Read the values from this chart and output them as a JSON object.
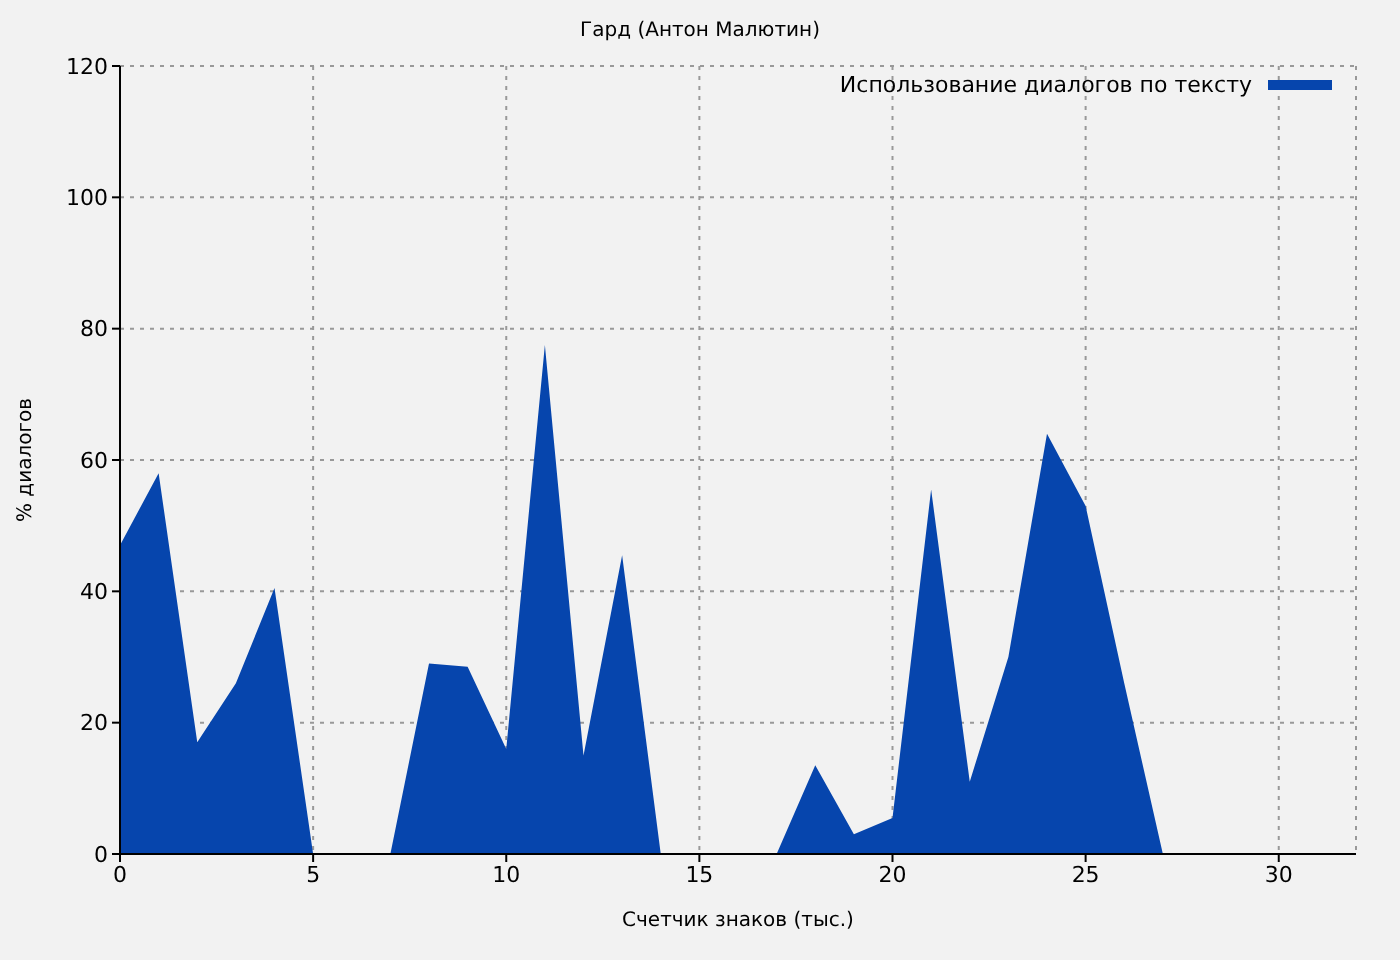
{
  "chart_data": {
    "type": "area",
    "title": "Гард (Антон Малютин)",
    "xlabel": "Счетчик знаков (тыс.)",
    "ylabel": "% диалогов",
    "x": [
      0,
      1,
      2,
      3,
      4,
      5,
      6,
      7,
      8,
      9,
      10,
      11,
      12,
      13,
      14,
      15,
      16,
      17,
      18,
      19,
      20,
      21,
      22,
      23,
      24,
      25,
      26,
      27
    ],
    "series": [
      {
        "name": "Использование диалогов по тексту",
        "color": "#0645ad",
        "values": [
          47,
          58,
          17,
          26,
          40.5,
          0,
          0,
          0,
          29,
          28.5,
          16,
          77.5,
          15,
          45.5,
          0,
          0,
          0,
          0,
          13.5,
          3,
          5.5,
          55.5,
          11,
          30,
          64,
          53,
          26,
          0
        ]
      }
    ],
    "xlim": [
      0,
      32
    ],
    "xticks": [
      0,
      5,
      10,
      15,
      20,
      25,
      30
    ],
    "ylim": [
      0,
      120
    ],
    "yticks": [
      0,
      20,
      40,
      60,
      80,
      100,
      120
    ],
    "grid": true,
    "legend": "top right"
  }
}
